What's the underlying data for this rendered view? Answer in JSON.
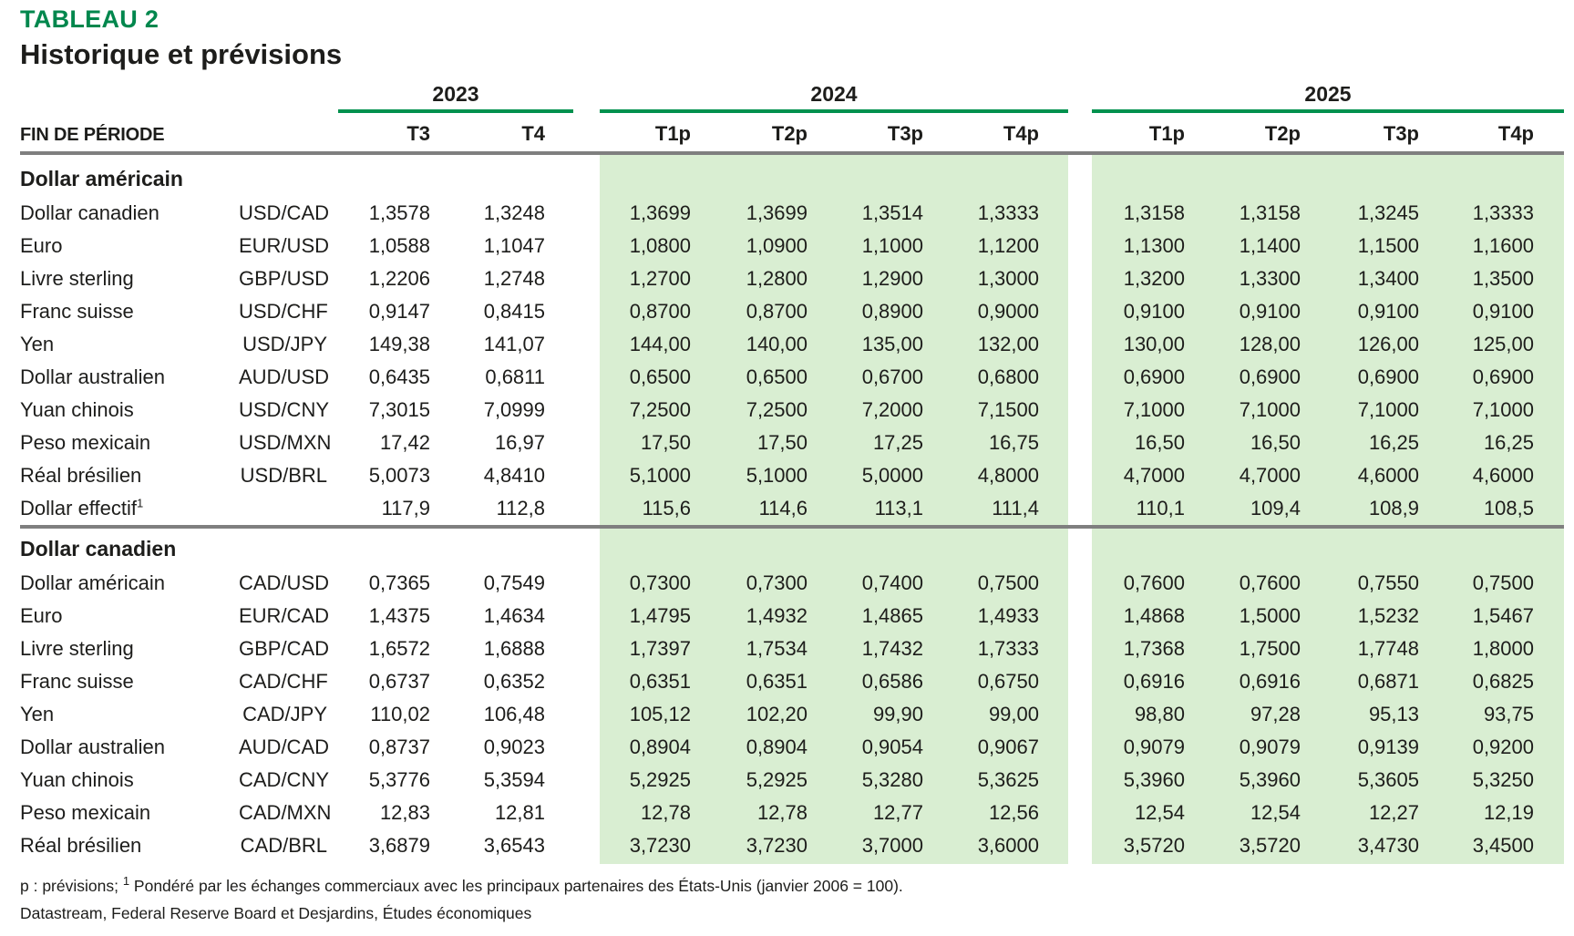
{
  "header": {
    "table_label": "TABLEAU 2",
    "title": "Historique et prévisions"
  },
  "columns": {
    "period_label": "FIN DE PÉRIODE",
    "groups": [
      {
        "year": "2023",
        "quarters": [
          "T3",
          "T4"
        ],
        "forecast": false
      },
      {
        "year": "2024",
        "quarters": [
          "T1p",
          "T2p",
          "T3p",
          "T4p"
        ],
        "forecast": true
      },
      {
        "year": "2025",
        "quarters": [
          "T1p",
          "T2p",
          "T3p",
          "T4p"
        ],
        "forecast": true
      }
    ]
  },
  "sections": [
    {
      "title": "Dollar américain",
      "rows": [
        {
          "label": "Dollar canadien",
          "pair": "USD/CAD",
          "values": [
            "1,3578",
            "1,3248",
            "1,3699",
            "1,3699",
            "1,3514",
            "1,3333",
            "1,3158",
            "1,3158",
            "1,3245",
            "1,3333"
          ]
        },
        {
          "label": "Euro",
          "pair": "EUR/USD",
          "values": [
            "1,0588",
            "1,1047",
            "1,0800",
            "1,0900",
            "1,1000",
            "1,1200",
            "1,1300",
            "1,1400",
            "1,1500",
            "1,1600"
          ]
        },
        {
          "label": "Livre sterling",
          "pair": "GBP/USD",
          "values": [
            "1,2206",
            "1,2748",
            "1,2700",
            "1,2800",
            "1,2900",
            "1,3000",
            "1,3200",
            "1,3300",
            "1,3400",
            "1,3500"
          ]
        },
        {
          "label": "Franc suisse",
          "pair": "USD/CHF",
          "values": [
            "0,9147",
            "0,8415",
            "0,8700",
            "0,8700",
            "0,8900",
            "0,9000",
            "0,9100",
            "0,9100",
            "0,9100",
            "0,9100"
          ]
        },
        {
          "label": "Yen",
          "pair": "USD/JPY",
          "values": [
            "149,38",
            "141,07",
            "144,00",
            "140,00",
            "135,00",
            "132,00",
            "130,00",
            "128,00",
            "126,00",
            "125,00"
          ]
        },
        {
          "label": "Dollar australien",
          "pair": "AUD/USD",
          "values": [
            "0,6435",
            "0,6811",
            "0,6500",
            "0,6500",
            "0,6700",
            "0,6800",
            "0,6900",
            "0,6900",
            "0,6900",
            "0,6900"
          ]
        },
        {
          "label": "Yuan chinois",
          "pair": "USD/CNY",
          "values": [
            "7,3015",
            "7,0999",
            "7,2500",
            "7,2500",
            "7,2000",
            "7,1500",
            "7,1000",
            "7,1000",
            "7,1000",
            "7,1000"
          ]
        },
        {
          "label": "Peso mexicain",
          "pair": "USD/MXN",
          "values": [
            "17,42",
            "16,97",
            "17,50",
            "17,50",
            "17,25",
            "16,75",
            "16,50",
            "16,50",
            "16,25",
            "16,25"
          ]
        },
        {
          "label": "Réal brésilien",
          "pair": "USD/BRL",
          "values": [
            "5,0073",
            "4,8410",
            "5,1000",
            "5,1000",
            "5,0000",
            "4,8000",
            "4,7000",
            "4,7000",
            "4,6000",
            "4,6000"
          ]
        },
        {
          "label": "Dollar effectif",
          "sup": "1",
          "pair": "",
          "values": [
            "117,9",
            "112,8",
            "115,6",
            "114,6",
            "113,1",
            "111,4",
            "110,1",
            "109,4",
            "108,9",
            "108,5"
          ]
        }
      ]
    },
    {
      "title": "Dollar canadien",
      "rows": [
        {
          "label": "Dollar américain",
          "pair": "CAD/USD",
          "values": [
            "0,7365",
            "0,7549",
            "0,7300",
            "0,7300",
            "0,7400",
            "0,7500",
            "0,7600",
            "0,7600",
            "0,7550",
            "0,7500"
          ]
        },
        {
          "label": "Euro",
          "pair": "EUR/CAD",
          "values": [
            "1,4375",
            "1,4634",
            "1,4795",
            "1,4932",
            "1,4865",
            "1,4933",
            "1,4868",
            "1,5000",
            "1,5232",
            "1,5467"
          ]
        },
        {
          "label": "Livre sterling",
          "pair": "GBP/CAD",
          "values": [
            "1,6572",
            "1,6888",
            "1,7397",
            "1,7534",
            "1,7432",
            "1,7333",
            "1,7368",
            "1,7500",
            "1,7748",
            "1,8000"
          ]
        },
        {
          "label": "Franc suisse",
          "pair": "CAD/CHF",
          "values": [
            "0,6737",
            "0,6352",
            "0,6351",
            "0,6351",
            "0,6586",
            "0,6750",
            "0,6916",
            "0,6916",
            "0,6871",
            "0,6825"
          ]
        },
        {
          "label": "Yen",
          "pair": "CAD/JPY",
          "values": [
            "110,02",
            "106,48",
            "105,12",
            "102,20",
            "99,90",
            "99,00",
            "98,80",
            "97,28",
            "95,13",
            "93,75"
          ]
        },
        {
          "label": "Dollar australien",
          "pair": "AUD/CAD",
          "values": [
            "0,8737",
            "0,9023",
            "0,8904",
            "0,8904",
            "0,9054",
            "0,9067",
            "0,9079",
            "0,9079",
            "0,9139",
            "0,9200"
          ]
        },
        {
          "label": "Yuan chinois",
          "pair": "CAD/CNY",
          "values": [
            "5,3776",
            "5,3594",
            "5,2925",
            "5,2925",
            "5,3280",
            "5,3625",
            "5,3960",
            "5,3960",
            "5,3605",
            "5,3250"
          ]
        },
        {
          "label": "Peso mexicain",
          "pair": "CAD/MXN",
          "values": [
            "12,83",
            "12,81",
            "12,78",
            "12,78",
            "12,77",
            "12,56",
            "12,54",
            "12,54",
            "12,27",
            "12,19"
          ]
        },
        {
          "label": "Réal brésilien",
          "pair": "CAD/BRL",
          "values": [
            "3,6879",
            "3,6543",
            "3,7230",
            "3,7230",
            "3,7000",
            "3,6000",
            "3,5720",
            "3,5720",
            "3,4730",
            "3,4500"
          ]
        }
      ]
    }
  ],
  "footnotes": {
    "note1_prefix": "p : prévisions; ",
    "note1_sup": "1",
    "note1_text": " Pondéré par les échanges commerciaux avec les principaux partenaires des États-Unis (janvier 2006 = 100).",
    "source": "Datastream, Federal Reserve Board et Desjardins, Études économiques"
  },
  "colors": {
    "accent_green": "#00874D",
    "line_green": "#00914E",
    "forecast_shade": "#D9EED2",
    "rule_gray": "#7F7F7F",
    "text": "#1D1D1B"
  }
}
